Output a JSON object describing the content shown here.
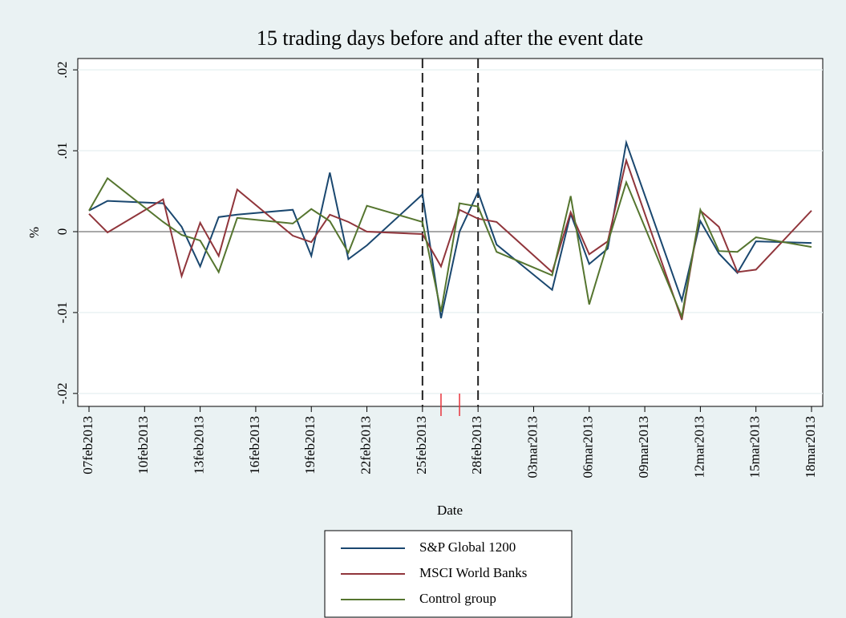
{
  "chart_data": {
    "type": "line",
    "title": "15 trading days before and after the event date",
    "x_label": "Date",
    "y_label": "%",
    "x": [
      "2013-02-07",
      "2013-02-08",
      "2013-02-11",
      "2013-02-12",
      "2013-02-13",
      "2013-02-14",
      "2013-02-15",
      "2013-02-18",
      "2013-02-19",
      "2013-02-20",
      "2013-02-21",
      "2013-02-22",
      "2013-02-25",
      "2013-02-26",
      "2013-02-27",
      "2013-02-28",
      "2013-03-01",
      "2013-03-04",
      "2013-03-05",
      "2013-03-06",
      "2013-03-07",
      "2013-03-08",
      "2013-03-11",
      "2013-03-12",
      "2013-03-13",
      "2013-03-14",
      "2013-03-15",
      "2013-03-18"
    ],
    "series": [
      {
        "name": "S&P Global 1200",
        "color": "#1a476f",
        "values": [
          0.0026,
          0.0038,
          0.0035,
          0.0006,
          -0.0043,
          0.0018,
          0.0021,
          0.0027,
          -0.003,
          0.0073,
          -0.0034,
          -0.0017,
          0.0046,
          -0.0107,
          0,
          0.0049,
          -0.0016,
          -0.0072,
          0.0022,
          -0.004,
          -0.0021,
          0.011,
          -0.0085,
          0.0013,
          -0.0027,
          -0.0051,
          -0.0012,
          -0.0014
        ]
      },
      {
        "name": "MSCI World Banks",
        "color": "#90353b",
        "values": [
          0.0022,
          -0.0001,
          0.004,
          -0.0055,
          0.0011,
          -0.003,
          0.0052,
          -0.0005,
          -0.0013,
          0.0021,
          0.0012,
          0,
          -0.0003,
          -0.0043,
          0.0027,
          0.0016,
          0.0012,
          -0.005,
          0.0024,
          -0.0028,
          -0.0012,
          0.0088,
          -0.0109,
          0.0026,
          0.0006,
          -0.005,
          -0.0047,
          0.0026
        ]
      },
      {
        "name": "Control group",
        "color": "#55752f",
        "values": [
          0.0026,
          0.0066,
          0.0012,
          -0.0004,
          -0.0011,
          -0.005,
          0.0017,
          0.001,
          0.0028,
          0.0013,
          -0.0026,
          0.0032,
          0.0012,
          -0.0099,
          0.0035,
          0.0031,
          -0.0025,
          -0.0054,
          0.0044,
          -0.009,
          -0.0014,
          0.0061,
          -0.0105,
          0.0027,
          -0.0024,
          -0.0025,
          -0.0007,
          -0.0019
        ]
      }
    ],
    "xlim": [
      "2013-02-07",
      "2013-03-18"
    ],
    "xticks": [
      {
        "value": "2013-02-07",
        "label": "07feb2013"
      },
      {
        "value": "2013-02-10",
        "label": "10feb2013"
      },
      {
        "value": "2013-02-13",
        "label": "13feb2013"
      },
      {
        "value": "2013-02-16",
        "label": "16feb2013"
      },
      {
        "value": "2013-02-19",
        "label": "19feb2013"
      },
      {
        "value": "2013-02-22",
        "label": "22feb2013"
      },
      {
        "value": "2013-02-25",
        "label": "25feb2013"
      },
      {
        "value": "2013-02-28",
        "label": "28feb2013"
      },
      {
        "value": "2013-03-03",
        "label": "03mar2013"
      },
      {
        "value": "2013-03-06",
        "label": "06mar2013"
      },
      {
        "value": "2013-03-09",
        "label": "09mar2013"
      },
      {
        "value": "2013-03-12",
        "label": "12mar2013"
      },
      {
        "value": "2013-03-15",
        "label": "15mar2013"
      },
      {
        "value": "2013-03-18",
        "label": "18mar2013"
      }
    ],
    "ylim": [
      -0.0216,
      0.0214
    ],
    "yticks": [
      {
        "value": -0.02,
        "label": "-.02"
      },
      {
        "value": -0.01,
        "label": "-.01"
      },
      0,
      {
        "value": 0.01,
        "label": ".01"
      },
      {
        "value": 0.02,
        "label": ".02"
      }
    ],
    "grid": true,
    "event_window": [
      "2013-02-25",
      "2013-02-28"
    ],
    "event_days": [
      "2013-02-26",
      "2013-02-27"
    ],
    "legend": "bottom"
  }
}
